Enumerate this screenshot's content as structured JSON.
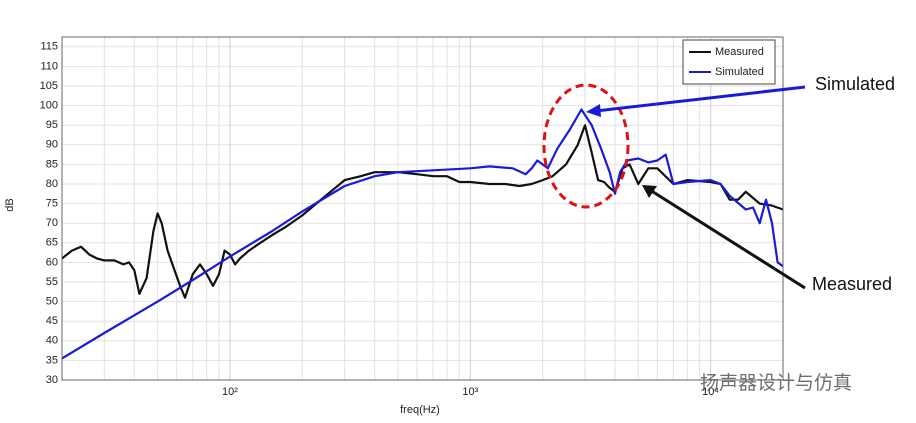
{
  "chart_data": {
    "type": "line",
    "xlabel": "freq(Hz)",
    "ylabel": "dB",
    "xscale": "log",
    "grid": true,
    "legend": "upper right",
    "xlim": [
      20,
      20000
    ],
    "ylim": [
      30,
      117.5
    ],
    "xticks": [
      {
        "value": 100,
        "label": "10²"
      },
      {
        "value": 1000,
        "label": "10³"
      },
      {
        "value": 10000,
        "label": "10⁴"
      }
    ],
    "xminorticks": [
      30,
      40,
      50,
      60,
      70,
      80,
      90,
      200,
      300,
      400,
      500,
      600,
      700,
      800,
      900,
      2000,
      3000,
      4000,
      5000,
      6000,
      7000,
      8000,
      9000
    ],
    "yticks": [
      30,
      35,
      40,
      45,
      50,
      55,
      60,
      65,
      70,
      75,
      80,
      85,
      90,
      95,
      100,
      105,
      110,
      115
    ],
    "series": [
      {
        "name": "Measured",
        "color": "#111111",
        "x": [
          20,
          22,
          24,
          26,
          28,
          30,
          33,
          36,
          38,
          40,
          42,
          45,
          48,
          50,
          52,
          55,
          58,
          62,
          65,
          70,
          75,
          80,
          85,
          90,
          95,
          100,
          105,
          110,
          120,
          130,
          150,
          170,
          200,
          250,
          300,
          350,
          400,
          500,
          600,
          700,
          800,
          900,
          1000,
          1200,
          1400,
          1600,
          1800,
          2000,
          2200,
          2500,
          2800,
          3000,
          3200,
          3400,
          3600,
          3800,
          4000,
          4300,
          4600,
          5000,
          5500,
          6000,
          7000,
          8000,
          10000,
          11000,
          12000,
          13000,
          14000,
          16000,
          18000,
          20000
        ],
        "values": [
          61,
          63,
          64,
          62,
          61,
          60.5,
          60.5,
          59.5,
          60,
          58,
          52,
          56,
          68,
          72.5,
          70,
          63,
          59,
          54,
          51,
          57,
          59.5,
          57,
          54,
          57,
          63,
          62,
          59.5,
          61,
          63,
          64.5,
          67,
          69,
          72,
          77,
          81,
          82,
          83,
          83,
          82.5,
          82,
          82,
          80.5,
          80.5,
          80,
          80,
          79.5,
          80,
          81,
          82,
          85,
          90,
          95,
          88,
          81,
          80.5,
          79,
          78,
          84,
          85,
          80,
          84,
          84,
          80,
          81,
          80.5,
          80,
          76,
          76,
          78,
          75,
          74.5,
          73.5
        ]
      },
      {
        "name": "Simulated",
        "color": "#1a1adb",
        "x": [
          20,
          30,
          50,
          70,
          100,
          150,
          200,
          300,
          400,
          500,
          700,
          1000,
          1200,
          1500,
          1700,
          1800,
          1900,
          2000,
          2100,
          2300,
          2600,
          2900,
          3200,
          3500,
          3800,
          4000,
          4200,
          4500,
          5000,
          5500,
          6000,
          6500,
          7000,
          8000,
          10000,
          11000,
          12000,
          14000,
          15000,
          16000,
          17000,
          18000,
          19000,
          20000
        ],
        "values": [
          35.5,
          42,
          50,
          55.5,
          61.5,
          68,
          73,
          79.5,
          82,
          83,
          83.5,
          84,
          84.5,
          84,
          82.5,
          84,
          86,
          85,
          84,
          89,
          94,
          99,
          95,
          89,
          83,
          77.5,
          83,
          86,
          86.5,
          85.5,
          86,
          87.5,
          80,
          80.5,
          81,
          80,
          77,
          73.5,
          74,
          70,
          76,
          70,
          60,
          59
        ]
      }
    ],
    "annotations": [
      "Simulated",
      "Measured"
    ],
    "watermark": "扬声器设计与仿真"
  }
}
